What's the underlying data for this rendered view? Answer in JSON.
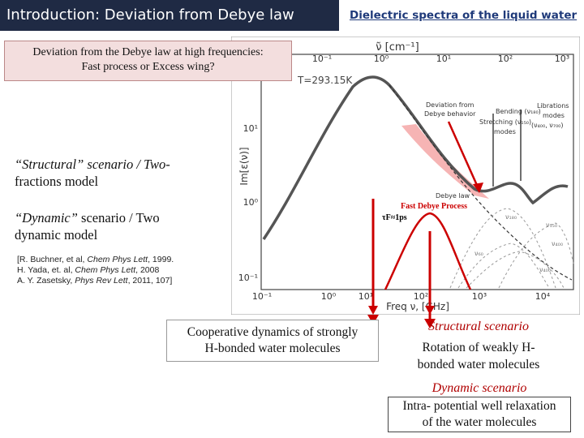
{
  "header": {
    "title": "Introduction: Deviation from Debye law",
    "subtitle": "Dielectric spectra of the liquid water"
  },
  "deviation_box": {
    "line1": "Deviation from the Debye law at high frequencies:",
    "line2": "Fast process or Excess wing?"
  },
  "scenarios": {
    "structural_line1": "“Structural” scenario / Two-",
    "structural_line2": "fractions model",
    "dynamic_line1_italic": "“Dynamic”",
    "dynamic_line1_rest": " scenario / Two",
    "dynamic_line2": "dynamic model"
  },
  "references": {
    "r1_pre": "[R. Buchner, et al, ",
    "r1_journal": "Chem Phys Lett",
    "r1_post": ", 1999.",
    "r2_pre": "H. Yada, et. al, ",
    "r2_journal": "Chem Phys Lett",
    "r2_post": ", 2008",
    "r3_pre": "A. Y. Zasetsky, ",
    "r3_journal": "Phys Rev Lett",
    "r3_post": ", 2011, 107]"
  },
  "plot": {
    "top_axis_label": "ν̃ [cm⁻¹]",
    "top_ticks": [
      "10⁻¹",
      "10⁰",
      "10¹",
      "10²",
      "10³"
    ],
    "y_axis_label": "Im[ε(ν)]",
    "y_ticks": [
      "10¹",
      "10⁰",
      "10⁻¹"
    ],
    "x_axis_label": "Freq ν, [GHz]",
    "x_ticks": [
      "10⁻¹",
      "10⁰",
      "10¹",
      "10²",
      "10³",
      "10⁴"
    ],
    "temperature": "T=293.15K",
    "annot_deviation": [
      "Deviation from",
      "Debye behavior"
    ],
    "annot_bending": "Bending (ν₁₈₀)",
    "annot_stretching": "Stretching (ν₁₅₀)",
    "annot_modes": "modes",
    "annot_librations": [
      "Librations",
      "modes"
    ],
    "annot_nu": "(ν₄₀₀, ν₇₀₀)",
    "annot_debye_law": "Debye law",
    "fast_debye_title": "Fast Debye Process",
    "fast_debye_tau": "τF≈1ps",
    "band_labels": [
      "ν₁₈₀",
      "ν₁₅₀",
      "ν₄₀₀",
      "ν₆₀",
      "ν₄₀₀"
    ],
    "colors": {
      "main_curve": "#555555",
      "pink_fill": "#f4a7a7",
      "red": "#cc0000",
      "fast_peak": "#cc0000"
    }
  },
  "bottom": {
    "coop_line1": "Cooperative dynamics of strongly",
    "coop_line2": "H-bonded water molecules",
    "structural_header": "Structural scenario",
    "structural_line1": "Rotation of weakly H-",
    "structural_line2": "bonded water molecules",
    "dynamic_header": "Dynamic scenario",
    "dynamic_line1": "Intra- potential well relaxation",
    "dynamic_line2": "of the water molecules"
  }
}
